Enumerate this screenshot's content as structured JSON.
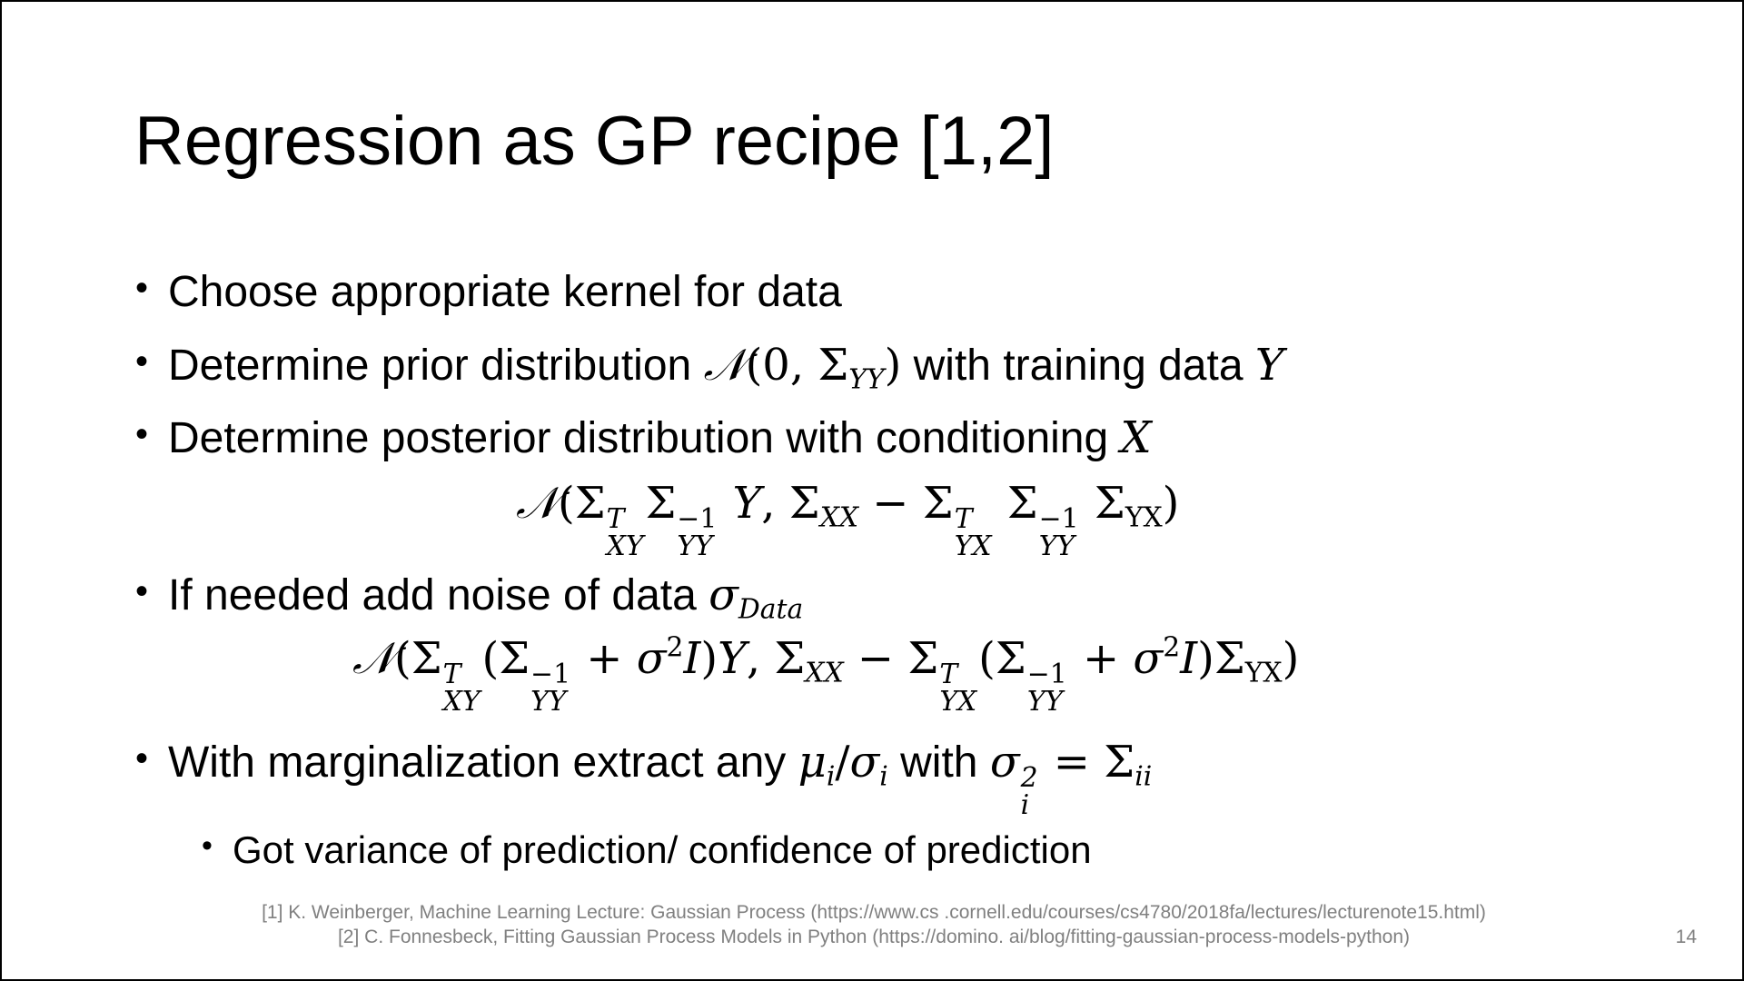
{
  "slide": {
    "title": "Regression as GP recipe [1,2]",
    "bullets": {
      "b1": "Choose appropriate kernel for data",
      "b2_text": "Determine prior distribution",
      "b2_tail": "with training data",
      "b3_text": "Determine posterior distribution with conditioning",
      "b4_text": "If needed add noise of data",
      "b5_text": "With marginalization extract any",
      "b5_mid": "with",
      "sub1": "Got variance of prediction/ confidence of prediction"
    },
    "references": {
      "ref1": "[1] K. Weinberger, Machine Learning Lecture: Gaussian Process (https://www.cs .cornell.edu/courses/cs4780/2018fa/lectures/lecturenote15.html)",
      "ref2": "[2] C. Fonnesbeck, Fitting Gaussian Process Models in Python (https://domino. ai/blog/fitting-gaussian-process-models-python)"
    },
    "page_number": "14"
  }
}
